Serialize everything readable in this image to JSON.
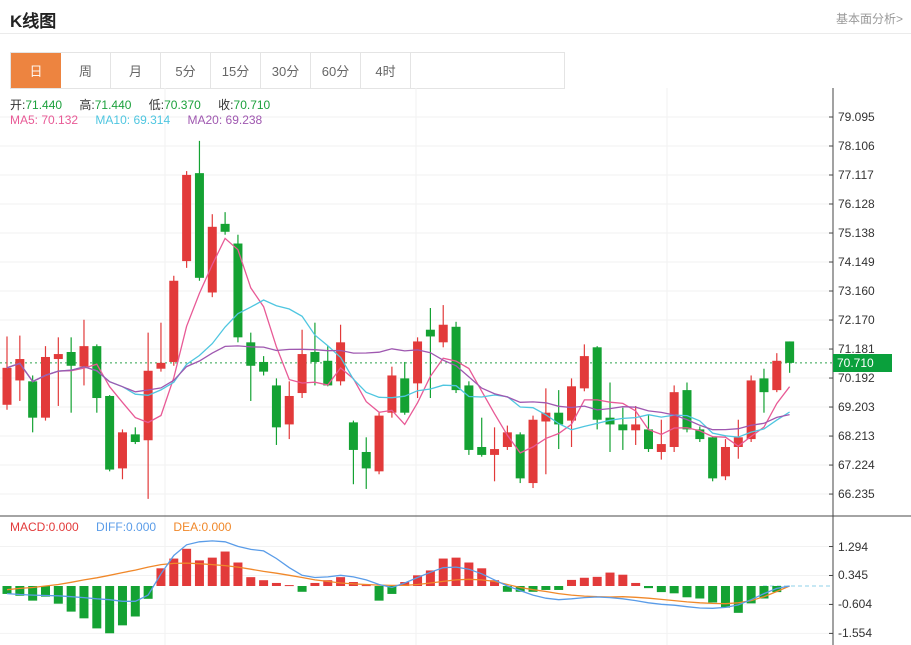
{
  "header": {
    "title": "K线图",
    "link": "基本面分析>"
  },
  "tabs": [
    {
      "label": "日",
      "active": true
    },
    {
      "label": "周",
      "active": false
    },
    {
      "label": "月",
      "active": false
    },
    {
      "label": "5分",
      "active": false
    },
    {
      "label": "15分",
      "active": false
    },
    {
      "label": "30分",
      "active": false
    },
    {
      "label": "60分",
      "active": false
    },
    {
      "label": "4时",
      "active": false
    }
  ],
  "legend": {
    "ohlc": [
      {
        "label": "开:",
        "value": "71.440"
      },
      {
        "label": "高:",
        "value": "71.440"
      },
      {
        "label": "低:",
        "value": "70.370"
      },
      {
        "label": "收:",
        "value": "70.710"
      }
    ],
    "ma": [
      {
        "label": "MA5:",
        "value": "70.132",
        "color": "#e85a96"
      },
      {
        "label": "MA10:",
        "value": "69.314",
        "color": "#4fc6e0"
      },
      {
        "label": "MA20:",
        "value": "69.238",
        "color": "#9f58b0"
      }
    ]
  },
  "macd_legend": [
    {
      "label": "MACD:",
      "value": "0.000",
      "color": "#e23a3a"
    },
    {
      "label": "DIFF:",
      "value": "0.000",
      "color": "#5a9ce8"
    },
    {
      "label": "DEA:",
      "value": "0.000",
      "color": "#f0882a"
    }
  ],
  "current_price_label": "70.710",
  "colors": {
    "up": "#e23a3a",
    "down": "#14a233",
    "value_text": "#1ca03c",
    "ma5": "#e85a96",
    "ma10": "#4fc6e0",
    "ma20": "#9f58b0",
    "diff_line": "#5a9ce8",
    "dea_line": "#f0882a",
    "tab_accent": "#ed8440",
    "price_line": "#2da44e",
    "badge_bg": "#0aa03c",
    "grid": "#f2f2f2",
    "divider": "#4a4a4a",
    "axis": "#444444",
    "macd_zero_dash": "#8fd0e8"
  },
  "chart_data": {
    "type": "candlestick+macd",
    "candle_format": [
      "open",
      "close",
      "high",
      "low"
    ],
    "main": {
      "y_tick_labels": [
        "79.095",
        "78.106",
        "77.117",
        "76.128",
        "75.138",
        "74.149",
        "73.160",
        "72.170",
        "71.181",
        "70.192",
        "69.203",
        "68.213",
        "67.224",
        "66.235"
      ],
      "y_ticks": [
        79.095,
        78.106,
        77.117,
        76.128,
        75.138,
        74.149,
        73.16,
        72.17,
        71.181,
        70.192,
        69.203,
        68.213,
        67.224,
        66.235
      ],
      "current_price": 70.71,
      "ma_periods": [
        5,
        10,
        20
      ],
      "candles": [
        [
          69.28,
          70.54,
          71.61,
          69.11
        ],
        [
          70.11,
          70.84,
          71.64,
          69.41
        ],
        [
          70.08,
          68.84,
          70.28,
          68.34
        ],
        [
          68.84,
          70.91,
          71.28,
          68.74
        ],
        [
          70.84,
          71.01,
          71.58,
          69.24
        ],
        [
          71.08,
          70.61,
          71.58,
          69.01
        ],
        [
          70.58,
          71.28,
          72.18,
          69.94
        ],
        [
          71.28,
          69.51,
          71.34,
          69.01
        ],
        [
          69.58,
          67.07,
          69.61,
          67.01
        ],
        [
          67.11,
          68.34,
          68.44,
          66.74
        ],
        [
          68.27,
          68.01,
          68.51,
          67.94
        ],
        [
          68.07,
          70.44,
          71.74,
          66.07
        ],
        [
          70.51,
          70.71,
          72.08,
          70.41
        ],
        [
          70.74,
          73.51,
          73.68,
          70.61
        ],
        [
          74.18,
          77.12,
          77.25,
          73.95
        ],
        [
          77.18,
          73.61,
          78.28,
          73.51
        ],
        [
          73.11,
          75.35,
          75.78,
          72.95
        ],
        [
          75.45,
          75.18,
          75.85,
          75.08
        ],
        [
          74.78,
          71.58,
          75.08,
          71.41
        ],
        [
          71.41,
          70.61,
          71.74,
          69.41
        ],
        [
          70.74,
          70.41,
          70.94,
          70.28
        ],
        [
          69.94,
          68.51,
          70.18,
          67.91
        ],
        [
          68.61,
          69.58,
          70.08,
          68.11
        ],
        [
          69.68,
          71.01,
          71.84,
          69.51
        ],
        [
          71.08,
          70.74,
          72.08,
          69.94
        ],
        [
          70.78,
          69.94,
          71.28,
          69.91
        ],
        [
          70.08,
          71.41,
          72.01,
          69.94
        ],
        [
          68.68,
          67.74,
          68.74,
          66.57
        ],
        [
          67.67,
          67.11,
          68.17,
          66.41
        ],
        [
          67.01,
          68.91,
          69.01,
          66.91
        ],
        [
          69.01,
          70.28,
          70.58,
          68.84
        ],
        [
          70.18,
          69.01,
          70.74,
          68.94
        ],
        [
          70.01,
          71.44,
          71.58,
          69.51
        ],
        [
          71.84,
          71.61,
          72.58,
          69.51
        ],
        [
          71.41,
          72.01,
          72.68,
          71.24
        ],
        [
          71.94,
          69.78,
          72.11,
          69.68
        ],
        [
          69.94,
          67.74,
          70.08,
          67.57
        ],
        [
          67.84,
          67.57,
          68.84,
          67.51
        ],
        [
          67.57,
          67.77,
          68.51,
          66.67
        ],
        [
          67.84,
          68.34,
          68.57,
          67.74
        ],
        [
          68.27,
          66.77,
          68.34,
          66.61
        ],
        [
          66.61,
          68.77,
          68.91,
          66.44
        ],
        [
          68.71,
          69.01,
          69.84,
          66.91
        ],
        [
          69.01,
          68.61,
          69.78,
          67.77
        ],
        [
          68.74,
          69.91,
          70.18,
          67.84
        ],
        [
          69.84,
          70.94,
          71.34,
          69.74
        ],
        [
          71.24,
          68.77,
          71.28,
          68.44
        ],
        [
          68.84,
          68.61,
          70.04,
          67.67
        ],
        [
          68.61,
          68.41,
          69.18,
          67.74
        ],
        [
          68.41,
          68.61,
          69.24,
          67.91
        ],
        [
          68.44,
          67.77,
          68.94,
          67.67
        ],
        [
          67.67,
          67.94,
          68.77,
          67.41
        ],
        [
          67.84,
          69.71,
          69.94,
          67.67
        ],
        [
          69.78,
          68.44,
          70.04,
          68.34
        ],
        [
          68.44,
          68.11,
          68.54,
          68.01
        ],
        [
          68.17,
          66.77,
          68.21,
          66.67
        ],
        [
          66.84,
          67.84,
          68.11,
          66.71
        ],
        [
          67.84,
          68.17,
          68.77,
          67.44
        ],
        [
          68.11,
          70.11,
          70.28,
          68.01
        ],
        [
          70.18,
          69.71,
          70.51,
          69.01
        ],
        [
          69.78,
          70.78,
          71.04,
          69.71
        ],
        [
          71.44,
          70.71,
          71.44,
          70.37
        ]
      ]
    },
    "macd": {
      "y_tick_labels": [
        "1.294",
        "0.345",
        "-0.604",
        "-1.554"
      ],
      "y_ticks": [
        1.294,
        0.345,
        -0.604,
        -1.554
      ],
      "histogram": [
        -0.26,
        -0.32,
        -0.48,
        -0.35,
        -0.58,
        -0.84,
        -1.06,
        -1.39,
        -1.55,
        -1.29,
        -1.0,
        -0.42,
        0.58,
        0.9,
        1.22,
        0.84,
        0.93,
        1.13,
        0.77,
        0.29,
        0.19,
        0.1,
        0.03,
        -0.19,
        0.1,
        0.19,
        0.29,
        0.13,
        0.03,
        -0.48,
        -0.26,
        0.13,
        0.35,
        0.51,
        0.9,
        0.93,
        0.77,
        0.58,
        0.19,
        -0.19,
        -0.19,
        -0.19,
        -0.13,
        -0.13,
        0.2,
        0.27,
        0.3,
        0.44,
        0.37,
        0.1,
        -0.07,
        -0.2,
        -0.24,
        -0.37,
        -0.41,
        -0.54,
        -0.71,
        -0.88,
        -0.57,
        -0.41,
        -0.2,
        0.0
      ],
      "diff": [
        -0.25,
        -0.28,
        -0.3,
        -0.31,
        -0.32,
        -0.35,
        -0.38,
        -0.42,
        -0.45,
        -0.5,
        -0.5,
        -0.3,
        0.4,
        1.0,
        1.35,
        1.45,
        1.48,
        1.45,
        1.3,
        1.2,
        1.15,
        0.9,
        0.6,
        0.35,
        0.28,
        0.3,
        0.35,
        0.3,
        0.2,
        0.05,
        -0.05,
        0.1,
        0.28,
        0.45,
        0.6,
        0.62,
        0.55,
        0.4,
        0.2,
        0.0,
        -0.15,
        -0.3,
        -0.4,
        -0.45,
        -0.42,
        -0.38,
        -0.36,
        -0.38,
        -0.42,
        -0.48,
        -0.55,
        -0.6,
        -0.63,
        -0.68,
        -0.72,
        -0.73,
        -0.7,
        -0.62,
        -0.45,
        -0.25,
        -0.08,
        0.0
      ],
      "dea": [
        -0.12,
        -0.08,
        -0.05,
        0.0,
        0.05,
        0.12,
        0.2,
        0.27,
        0.35,
        0.44,
        0.52,
        0.62,
        0.7,
        0.74,
        0.75,
        0.73,
        0.7,
        0.67,
        0.62,
        0.55,
        0.48,
        0.42,
        0.35,
        0.28,
        0.2,
        0.15,
        0.1,
        0.07,
        0.05,
        0.03,
        0.02,
        0.02,
        0.05,
        0.1,
        0.15,
        0.2,
        0.22,
        0.2,
        0.15,
        0.05,
        -0.05,
        -0.12,
        -0.18,
        -0.25,
        -0.3,
        -0.33,
        -0.35,
        -0.36,
        -0.35,
        -0.37,
        -0.4,
        -0.44,
        -0.48,
        -0.52,
        -0.55,
        -0.57,
        -0.58,
        -0.55,
        -0.48,
        -0.35,
        -0.18,
        0.0
      ]
    }
  }
}
